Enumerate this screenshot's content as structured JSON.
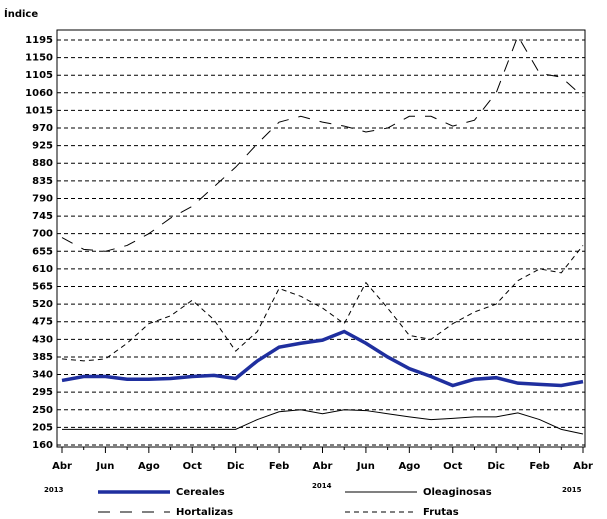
{
  "chart_data": {
    "type": "line",
    "y_axis_label": "Índice",
    "categories": [
      "Abr",
      null,
      "Jun",
      null,
      "Ago",
      null,
      "Oct",
      null,
      "Dic",
      null,
      "Feb",
      null,
      "Abr",
      null,
      "Jun",
      null,
      "Ago",
      null,
      "Oct",
      null,
      "Dic",
      null,
      "Feb",
      null,
      "Abr"
    ],
    "year_labels": [
      "2013",
      "2014",
      "2015"
    ],
    "series": [
      {
        "name": "Cereales",
        "color": "#1f2f9f",
        "style": "thick",
        "values": [
          325,
          335,
          335,
          328,
          328,
          330,
          335,
          338,
          330,
          375,
          410,
          420,
          428,
          450,
          420,
          385,
          355,
          335,
          312,
          328,
          332,
          318,
          315,
          312,
          322
        ]
      },
      {
        "name": "Oleaginosas",
        "color": "#000000",
        "style": "solid",
        "values": [
          200,
          200,
          200,
          200,
          200,
          200,
          200,
          200,
          200,
          225,
          245,
          250,
          240,
          250,
          248,
          240,
          232,
          225,
          228,
          232,
          232,
          242,
          225,
          200,
          188
        ]
      },
      {
        "name": "Hortalizas",
        "color": "#000000",
        "style": "long-dash",
        "values": [
          690,
          660,
          655,
          670,
          700,
          740,
          770,
          820,
          870,
          930,
          985,
          1000,
          985,
          975,
          960,
          970,
          1000,
          1000,
          975,
          990,
          1060,
          1205,
          1110,
          1100,
          1050
        ]
      },
      {
        "name": "Frutas",
        "color": "#000000",
        "style": "short-dash",
        "values": [
          380,
          375,
          380,
          420,
          470,
          490,
          530,
          480,
          400,
          450,
          560,
          540,
          510,
          470,
          575,
          510,
          440,
          430,
          470,
          500,
          520,
          580,
          610,
          600,
          670
        ]
      }
    ],
    "ylim": [
      160,
      1220
    ],
    "yticks": [
      160,
      205,
      250,
      295,
      340,
      385,
      430,
      475,
      520,
      565,
      610,
      655,
      700,
      745,
      790,
      835,
      880,
      925,
      970,
      1015,
      1060,
      1105,
      1150,
      1195
    ],
    "grid": true
  }
}
